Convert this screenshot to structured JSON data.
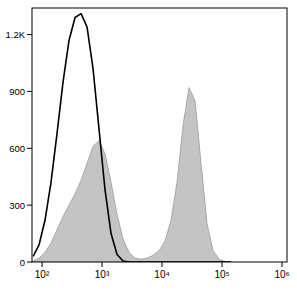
{
  "chart_data": {
    "type": "line",
    "log": "x",
    "x": [
      71,
      89,
      112,
      141,
      178,
      224,
      282,
      355,
      447,
      562,
      708,
      891,
      1122,
      1413,
      1778,
      2239,
      2818,
      3548,
      4467,
      5623,
      7079,
      8913,
      11220,
      14125,
      17783,
      22387,
      28184,
      35481,
      44668,
      56234,
      70795,
      89125,
      112202,
      141254
    ],
    "series": [
      {
        "type": "area",
        "color": "#c4c4c4",
        "values": [
          5,
          20,
          50,
          100,
          170,
          240,
          300,
          360,
          430,
          520,
          610,
          640,
          570,
          420,
          250,
          120,
          50,
          20,
          15,
          20,
          35,
          60,
          110,
          220,
          420,
          720,
          920,
          850,
          520,
          200,
          60,
          15,
          3,
          0
        ]
      },
      {
        "type": "line",
        "color": "#000000",
        "values": [
          30,
          90,
          220,
          420,
          680,
          950,
          1170,
          1290,
          1310,
          1240,
          1020,
          700,
          380,
          150,
          40,
          5,
          0,
          0,
          0,
          0,
          0,
          0,
          0,
          0,
          0,
          0,
          0,
          0,
          0,
          0,
          0,
          0,
          0,
          0
        ]
      }
    ],
    "xlim": [
      68,
      1210000
    ],
    "xticks": [
      {
        "value": 100,
        "label": "10²"
      },
      {
        "value": 1000,
        "label": "10³"
      },
      {
        "value": 10000,
        "label": "10⁴"
      },
      {
        "value": 100000,
        "label": "10⁵"
      },
      {
        "value": 1000000,
        "label": "10⁶"
      }
    ],
    "ylim": [
      0,
      1340
    ],
    "yticks": [
      0,
      300,
      600,
      900,
      {
        "value": 1200,
        "label": "1.2K"
      }
    ]
  }
}
